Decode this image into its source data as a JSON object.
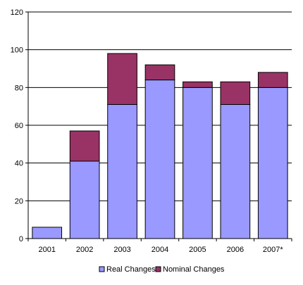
{
  "chart_data": {
    "type": "bar",
    "stacked": true,
    "categories": [
      "2001",
      "2002",
      "2003",
      "2004",
      "2005",
      "2006",
      "2007*"
    ],
    "series": [
      {
        "name": "Real Changes",
        "color": "#9999ff",
        "values": [
          6,
          41,
          71,
          84,
          80,
          71,
          80
        ]
      },
      {
        "name": "Nominal Changes",
        "color": "#993366",
        "values": [
          0,
          16,
          27,
          8,
          3,
          12,
          8
        ]
      }
    ],
    "ylim": [
      0,
      120
    ],
    "yticks": [
      0,
      20,
      40,
      60,
      80,
      100,
      120
    ],
    "grid": true,
    "legend": "bottom"
  }
}
